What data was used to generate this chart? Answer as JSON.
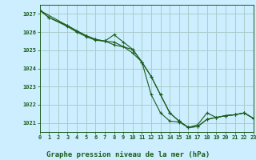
{
  "title": "Graphe pression niveau de la mer (hPa)",
  "bg_color": "#cceeff",
  "grid_color": "#aacccc",
  "line_color": "#1a5c1a",
  "xlim": [
    0,
    23
  ],
  "ylim": [
    1020.5,
    1027.5
  ],
  "yticks": [
    1021,
    1022,
    1023,
    1024,
    1025,
    1026,
    1027
  ],
  "xticks": [
    0,
    1,
    2,
    3,
    4,
    5,
    6,
    7,
    8,
    9,
    10,
    11,
    12,
    13,
    14,
    15,
    16,
    17,
    18,
    19,
    20,
    21,
    22,
    23
  ],
  "series1_x": [
    0,
    1,
    3,
    4,
    5,
    6,
    7,
    8,
    9,
    10,
    11,
    12,
    13,
    14,
    15,
    16,
    17,
    18,
    19,
    20,
    21,
    22,
    23
  ],
  "series1_y": [
    1027.2,
    1026.8,
    1026.3,
    1026.0,
    1025.75,
    1025.55,
    1025.5,
    1025.45,
    1025.2,
    1024.85,
    1024.35,
    1022.55,
    1021.55,
    1021.1,
    1021.05,
    1020.75,
    1020.9,
    1021.55,
    1021.3,
    1021.4,
    1021.45,
    1021.55,
    1021.25
  ],
  "series2_x": [
    0,
    1,
    3,
    4,
    5,
    6,
    7,
    8,
    10,
    11,
    12,
    13,
    14,
    15,
    16,
    17,
    18,
    19,
    20,
    21,
    22,
    23
  ],
  "series2_y": [
    1027.2,
    1026.8,
    1026.35,
    1026.05,
    1025.8,
    1025.6,
    1025.5,
    1025.3,
    1025.05,
    1024.35,
    1023.55,
    1022.55,
    1021.55,
    1021.1,
    1020.75,
    1020.8,
    1021.2,
    1021.3,
    1021.4,
    1021.45,
    1021.55,
    1021.25
  ],
  "series3_x": [
    0,
    3,
    5,
    6,
    7,
    8,
    9,
    10,
    11,
    12,
    13,
    14,
    15,
    16,
    17,
    18,
    19,
    20,
    21,
    22,
    23
  ],
  "series3_y": [
    1027.2,
    1026.35,
    1025.8,
    1025.6,
    1025.5,
    1025.85,
    1025.45,
    1025.05,
    1024.35,
    1023.55,
    1022.55,
    1021.55,
    1021.1,
    1020.75,
    1020.8,
    1021.2,
    1021.3,
    1021.4,
    1021.45,
    1021.55,
    1021.25
  ]
}
